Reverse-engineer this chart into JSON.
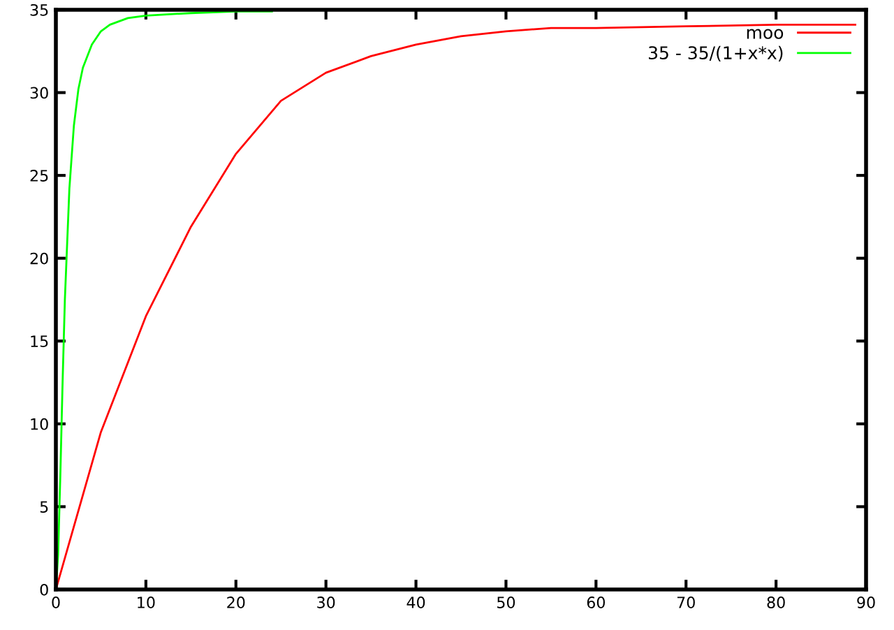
{
  "chart_data": {
    "type": "line",
    "xlim": [
      0,
      90
    ],
    "ylim": [
      0,
      35
    ],
    "xticks": [
      0,
      10,
      20,
      30,
      40,
      50,
      60,
      70,
      80,
      90
    ],
    "yticks": [
      0,
      5,
      10,
      15,
      20,
      25,
      30,
      35
    ],
    "grid": false,
    "legend": "top right",
    "marker": "none",
    "line_style": "solid",
    "series": [
      {
        "name": "moo",
        "color": "#ff0000",
        "x": [
          0,
          5,
          10,
          15,
          20,
          25,
          30,
          35,
          40,
          45,
          50,
          55,
          60,
          70,
          80,
          88.8
        ],
        "values": [
          0,
          9.5,
          16.5,
          21.9,
          26.3,
          29.5,
          31.2,
          32.2,
          32.9,
          33.4,
          33.7,
          33.9,
          33.9,
          34.0,
          34.1,
          34.1
        ]
      },
      {
        "name": "35 - 35/(1+x*x)",
        "color": "#00ff00",
        "x": [
          0,
          0.25,
          0.5,
          0.75,
          1,
          1.5,
          2,
          2.5,
          3,
          4,
          5,
          6,
          8,
          10,
          15,
          20,
          24
        ],
        "values": [
          0,
          2.1,
          7,
          12.6,
          17.5,
          24.2,
          28,
          30.2,
          31.5,
          32.9,
          33.7,
          34.1,
          34.5,
          34.65,
          34.8,
          34.9,
          34.9
        ]
      }
    ]
  }
}
